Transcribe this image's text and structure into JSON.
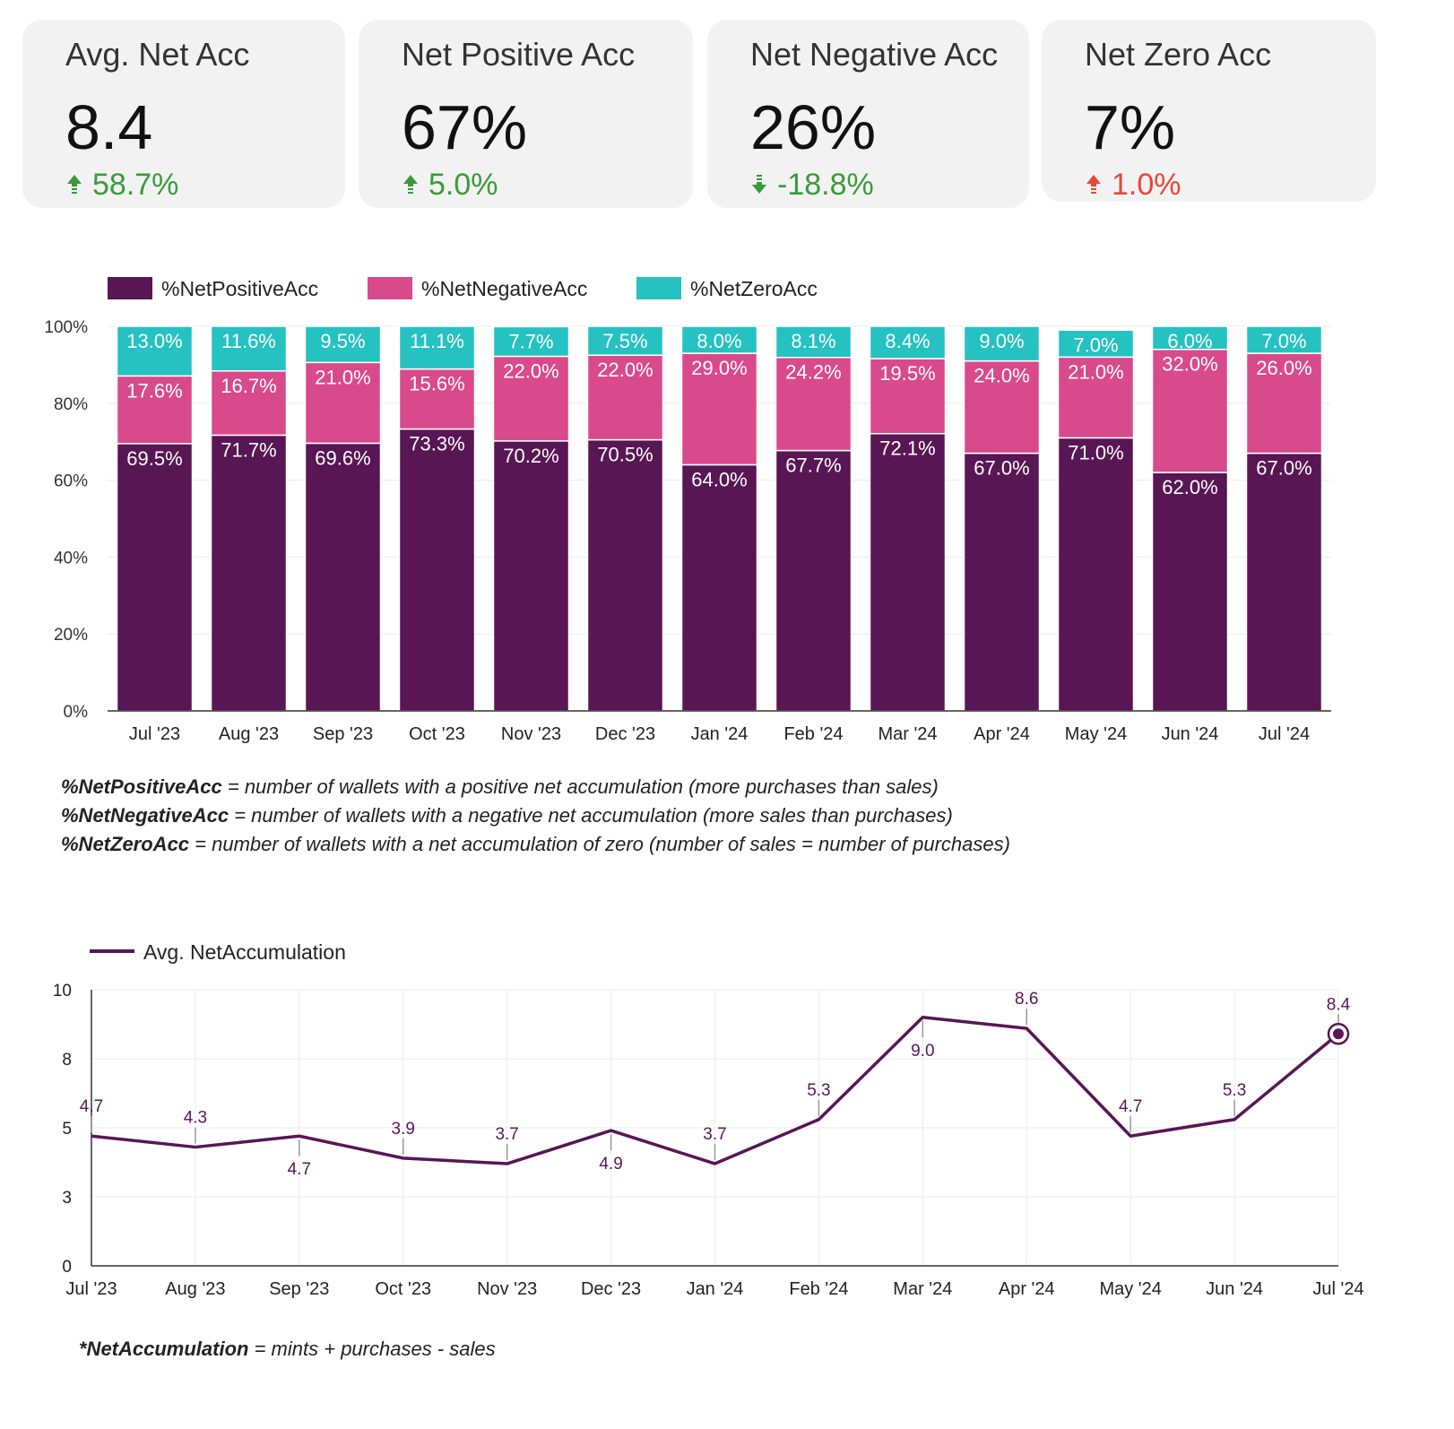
{
  "scorecards": [
    {
      "title": "Avg. Net Acc",
      "value": "8.4",
      "delta": "58.7%",
      "direction": "up",
      "color": "#3a9a3a"
    },
    {
      "title": "Net Positive Acc",
      "value": "67%",
      "delta": "5.0%",
      "direction": "up",
      "color": "#3a9a3a"
    },
    {
      "title": "Net Negative Acc",
      "value": "26%",
      "delta": "-18.8%",
      "direction": "down",
      "color": "#3a9a3a"
    },
    {
      "title": "Net Zero Acc",
      "value": "7%",
      "delta": "1.0%",
      "direction": "up",
      "color": "#e8453c"
    }
  ],
  "chart_data": [
    {
      "type": "bar",
      "stacked": true,
      "categories": [
        "Jul '23",
        "Aug '23",
        "Sep '23",
        "Oct '23",
        "Nov '23",
        "Dec '23",
        "Jan '24",
        "Feb '24",
        "Mar '24",
        "Apr '24",
        "May '24",
        "Jun '24",
        "Jul '24"
      ],
      "series": [
        {
          "name": "%NetPositiveAcc",
          "color": "#581654",
          "values": [
            69.5,
            71.7,
            69.6,
            73.3,
            70.2,
            70.5,
            64.0,
            67.7,
            72.1,
            67.0,
            71.0,
            62.0,
            67.0
          ]
        },
        {
          "name": "%NetNegativeAcc",
          "color": "#d94a8c",
          "values": [
            17.6,
            16.7,
            21.0,
            15.6,
            22.0,
            22.0,
            29.0,
            24.2,
            19.5,
            24.0,
            21.0,
            32.0,
            26.0
          ]
        },
        {
          "name": "%NetZeroAcc",
          "color": "#26c1c1",
          "values": [
            13.0,
            11.6,
            9.5,
            11.1,
            7.7,
            7.5,
            8.0,
            8.1,
            8.4,
            9.0,
            7.0,
            6.0,
            7.0
          ]
        }
      ],
      "yticks": [
        "0%",
        "20%",
        "40%",
        "60%",
        "80%",
        "100%"
      ],
      "ylim": [
        0,
        100
      ],
      "legend_position": "top-left"
    },
    {
      "type": "line",
      "categories": [
        "Jul '23",
        "Aug '23",
        "Sep '23",
        "Oct '23",
        "Nov '23",
        "Dec '23",
        "Jan '24",
        "Feb '24",
        "Mar '24",
        "Apr '24",
        "May '24",
        "Jun '24",
        "Jul '24"
      ],
      "series": [
        {
          "name": "Avg. NetAccumulation",
          "color": "#581654",
          "values": [
            4.7,
            4.3,
            4.7,
            3.9,
            3.7,
            4.9,
            3.7,
            5.3,
            9.0,
            8.6,
            4.7,
            5.3,
            8.4
          ]
        }
      ],
      "yticks": [
        "0",
        "3",
        "5",
        "8",
        "10"
      ],
      "ylim": [
        0,
        10
      ],
      "legend_position": "top-left",
      "grid": true
    }
  ],
  "notes_bar": [
    {
      "term": "%NetPositiveAcc",
      "text": " = number of wallets with a positive net accumulation (more purchases than sales)"
    },
    {
      "term": "%NetNegativeAcc",
      "text": " = number of wallets with a negative net accumulation (more sales than purchases)"
    },
    {
      "term": "%NetZeroAcc",
      "text": " = number of wallets with a net accumulation of zero (number of sales = number of purchases)"
    }
  ],
  "note_line": {
    "term": "*NetAccumulation",
    "text": " = mints + purchases - sales"
  }
}
